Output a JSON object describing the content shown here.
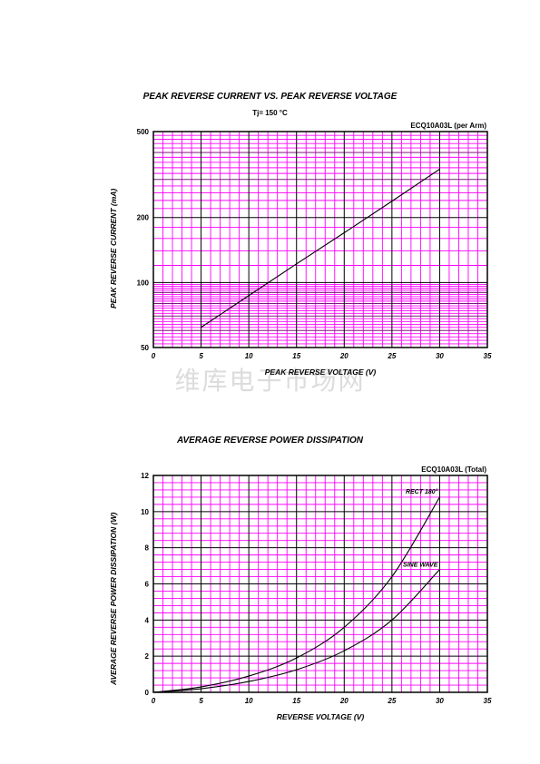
{
  "watermark": "维库电子市场网",
  "chart_data": [
    {
      "type": "line",
      "title": "PEAK REVERSE CURRENT VS. PEAK REVERSE VOLTAGE",
      "subtitle": "Tj= 150 °C",
      "part_label": "ECQ10A03L (per Arm)",
      "xlabel": "PEAK REVERSE VOLTAGE (V)",
      "ylabel": "PEAK REVERSE CURRENT (mA)",
      "xlim": [
        0,
        35
      ],
      "ylim": [
        50,
        500
      ],
      "yscale": "log",
      "xticks": [
        0,
        5,
        10,
        15,
        20,
        25,
        30,
        35
      ],
      "yticks": [
        50,
        100,
        200,
        500
      ],
      "grid": true,
      "grid_color": "#ff00ff",
      "series": [
        {
          "x": [
            5,
            10,
            15,
            20,
            25,
            30
          ],
          "y": [
            62,
            87,
            122,
            170,
            238,
            335
          ]
        }
      ]
    },
    {
      "type": "line",
      "title": "AVERAGE REVERSE POWER DISSIPATION",
      "part_label": "ECQ10A03L (Total)",
      "xlabel": "REVERSE VOLTAGE (V)",
      "ylabel": "AVERAGE REVERSE POWER DISSIPATION (W)",
      "xlim": [
        0,
        35
      ],
      "ylim": [
        0,
        12
      ],
      "xticks": [
        0,
        5,
        10,
        15,
        20,
        25,
        30,
        35
      ],
      "yticks": [
        0,
        2,
        4,
        6,
        8,
        10,
        12
      ],
      "grid": true,
      "grid_color": "#ff00ff",
      "series": [
        {
          "name": "RECT 180°",
          "x": [
            0,
            5,
            10,
            15,
            20,
            25,
            30
          ],
          "y": [
            0,
            0.3,
            0.9,
            1.9,
            3.6,
            6.4,
            10.8
          ]
        },
        {
          "name": "SINE WAVE",
          "x": [
            0,
            5,
            10,
            15,
            20,
            25,
            30
          ],
          "y": [
            0,
            0.2,
            0.6,
            1.25,
            2.3,
            4.0,
            6.8
          ]
        }
      ]
    }
  ]
}
